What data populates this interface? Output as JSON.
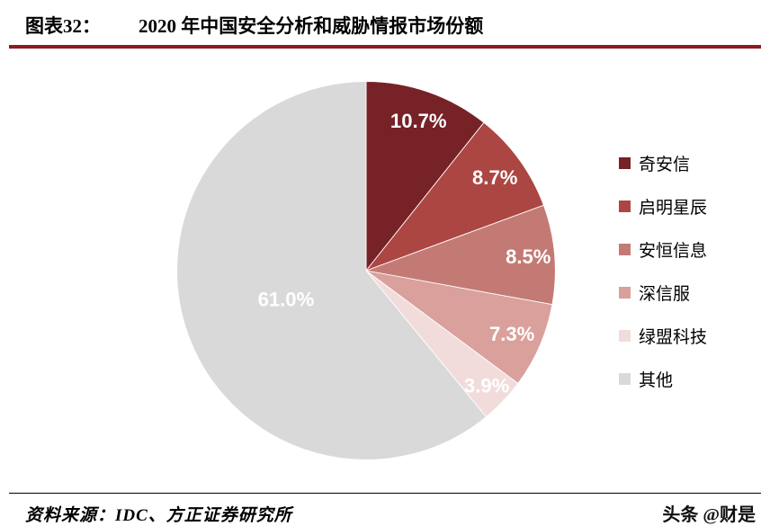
{
  "header": {
    "figure_label": "图表32：",
    "title": "2020 年中国安全分析和威胁情报市场份额"
  },
  "chart_data": {
    "type": "pie",
    "title": "2020 年中国安全分析和威胁情报市场份额",
    "categories": [
      "奇安信",
      "启明星辰",
      "安恒信息",
      "深信服",
      "绿盟科技",
      "其他"
    ],
    "values": [
      10.7,
      8.7,
      8.5,
      7.3,
      3.9,
      61.0
    ],
    "labels": [
      "10.7%",
      "8.7%",
      "8.5%",
      "7.3%",
      "3.9%",
      "61.0%"
    ],
    "colors": [
      "#762227",
      "#AC4642",
      "#C47A74",
      "#D9A09C",
      "#F2DCDB",
      "#D9D9D9"
    ],
    "label_radius": [
      0.84,
      0.84,
      0.86,
      0.84,
      0.88,
      0.45
    ],
    "legend_position": "right",
    "start_angle_deg": 0,
    "direction": "clockwise"
  },
  "footer": {
    "source": "资料来源：IDC、方正证券研究所",
    "watermark": "头条 @财是"
  },
  "colors": {
    "title_rule": "#8E1B1F",
    "footer_rule": "#000000",
    "label_text": "#FFFFFF"
  }
}
